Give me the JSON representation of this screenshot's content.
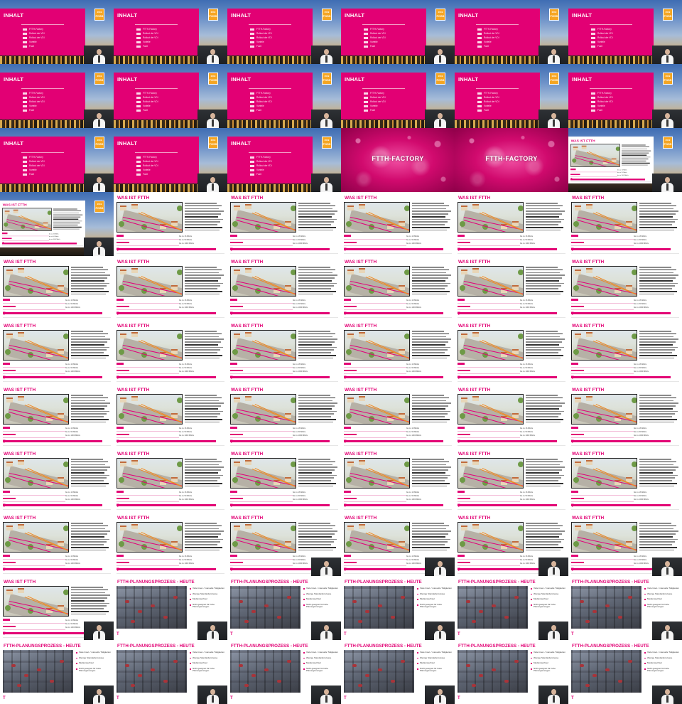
{
  "slides": {
    "inhalt": {
      "title": "INHALT",
      "items": [
        "FTTH-Factory",
        "Rollout der VDI",
        "Rollout der VDI",
        "Vorteile",
        "Fazit"
      ],
      "logo_year": "2019",
      "logo_word": "FOSS"
    },
    "factory": {
      "title": "FTTH-FACTORY"
    },
    "was": {
      "title": "WAS IST FTTH",
      "bar_labels": [
        "bis zu 16 Mbit/s",
        "bis zu 50 Mbit/s",
        "bis zu 1000 Mbit/s"
      ],
      "footer_logo": "T"
    },
    "plan": {
      "title": "FTTH-PLANUNGSPROZESS - HEUTE",
      "bullets": [
        "Viele Insel- / manuelle Tätigkeiten",
        "Wenige Standardprozesse",
        "Medienwechsel",
        "Nicht geeignet für hohe Planungsmengen"
      ],
      "footer_logo": "T"
    }
  },
  "grid": {
    "rows": [
      [
        "inhalt",
        "inhalt",
        "inhalt",
        "inhalt",
        "inhalt",
        "inhalt"
      ],
      [
        "inhalt",
        "inhalt",
        "inhalt",
        "inhalt",
        "inhalt",
        "inhalt"
      ],
      [
        "inhalt",
        "inhalt",
        "inhalt",
        "factory",
        "factory",
        "was-over"
      ],
      [
        "was-over",
        "was",
        "was",
        "was",
        "was",
        "was"
      ],
      [
        "was",
        "was",
        "was",
        "was",
        "was",
        "was"
      ],
      [
        "was",
        "was",
        "was",
        "was",
        "was",
        "was"
      ],
      [
        "was",
        "was",
        "was",
        "was",
        "was",
        "was"
      ],
      [
        "was",
        "was",
        "was",
        "was",
        "was",
        "was"
      ],
      [
        "was",
        "was",
        "was-cam",
        "was-cam",
        "was-cam",
        "was-cam"
      ],
      [
        "was-cam",
        "plan",
        "plan",
        "plan",
        "plan",
        "plan"
      ],
      [
        "plan",
        "plan",
        "plan",
        "plan",
        "plan",
        "plan"
      ]
    ]
  },
  "colors": {
    "magenta": "#e20074",
    "logo": "#f5a623"
  }
}
